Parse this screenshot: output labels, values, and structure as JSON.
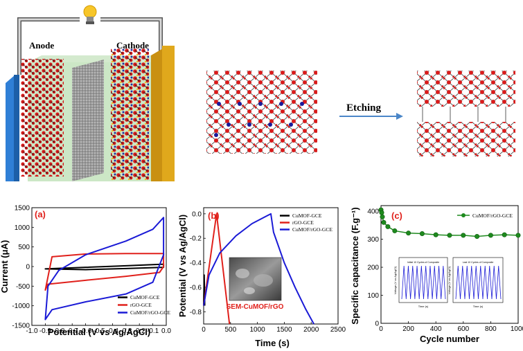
{
  "top": {
    "anode_label": "Anode",
    "cathode_label": "Cathode",
    "etching_label": "Etching"
  },
  "panels": {
    "a": {
      "label": "(a)"
    },
    "b": {
      "label": "(b)",
      "inset_label": "SEM-CuMOF/rGO"
    },
    "c": {
      "label": "(c)",
      "inset_left_title": "Initial 10 Cycles of Composite",
      "inset_right_title": "Last 10 Cycles of Composite",
      "inset_xlabel": "Time (s)",
      "inset_ylabel": "Voltage (V vs Ag/AgCl)"
    }
  },
  "colors": {
    "black": "#000000",
    "red": "#e0201b",
    "darkred": "#7a0a0a",
    "blue": "#1a1ad6",
    "green": "#1e8a1e"
  },
  "chart_data": [
    {
      "type": "line",
      "id": "a",
      "xlabel": "Potential (V vs Ag/AgCl)",
      "ylabel": "Current (μA)",
      "xlim": [
        -1.0,
        0.0
      ],
      "ylim": [
        -1500,
        1500
      ],
      "xticks": [
        "-1.0",
        "-0.9",
        "-0.8",
        "-0.7",
        "-0.6",
        "-0.5",
        "-0.4",
        "-0.3",
        "-0.2",
        "-0.1",
        "0.0"
      ],
      "yticks": [
        "-1500",
        "-1000",
        "-500",
        "0",
        "500",
        "1000",
        "1500"
      ],
      "legend": [
        "CuMOF-GCE",
        "rGO-GCE",
        "CuMOF/rGO-GCE"
      ],
      "series": [
        {
          "name": "CuMOF-GCE",
          "x": [
            -0.9,
            -0.6,
            -0.3,
            -0.02,
            -0.02,
            -0.3,
            -0.6,
            -0.9
          ],
          "y": [
            -60,
            -20,
            20,
            60,
            -20,
            -50,
            -80,
            -60
          ]
        },
        {
          "name": "rGO-GCE",
          "x": [
            -0.9,
            -0.85,
            -0.6,
            -0.3,
            -0.02,
            -0.02,
            -0.05,
            -0.3,
            -0.6,
            -0.88,
            -0.9
          ],
          "y": [
            -600,
            250,
            320,
            330,
            330,
            0,
            -150,
            -250,
            -350,
            -450,
            -600
          ]
        },
        {
          "name": "CuMOF/rGO-GCE",
          "x": [
            -0.9,
            -0.88,
            -0.8,
            -0.6,
            -0.3,
            -0.1,
            -0.02,
            -0.02,
            -0.1,
            -0.3,
            -0.6,
            -0.85,
            -0.9
          ],
          "y": [
            -1350,
            -500,
            -100,
            300,
            650,
            950,
            1250,
            300,
            -400,
            -700,
            -900,
            -1100,
            -1350
          ]
        }
      ]
    },
    {
      "type": "line",
      "id": "b",
      "xlabel": "Time (s)",
      "ylabel": "Potential (V vs Ag/AgCl)",
      "xlim": [
        0,
        2500
      ],
      "ylim": [
        -0.9,
        0.05
      ],
      "xticks": [
        "0",
        "500",
        "1000",
        "1500",
        "2000",
        "2500"
      ],
      "yticks": [
        "-0.8",
        "-0.6",
        "-0.4",
        "-0.2",
        "0.0"
      ],
      "legend": [
        "CuMOF-GCE",
        "rGO-GCE",
        "CuMOF/rGO-GCE"
      ],
      "series": [
        {
          "name": "CuMOF-GCE",
          "x": [
            0,
            10,
            20
          ],
          "y": [
            -0.75,
            -0.5,
            -0.75
          ]
        },
        {
          "name": "rGO-GCE",
          "x": [
            0,
            240,
            480
          ],
          "y": [
            -0.75,
            0.0,
            -0.9
          ]
        },
        {
          "name": "CuMOF/rGO-GCE",
          "x": [
            0,
            100,
            300,
            600,
            900,
            1250,
            1300,
            1500,
            1700,
            1900,
            2050
          ],
          "y": [
            -0.75,
            -0.5,
            -0.32,
            -0.18,
            -0.08,
            0.0,
            -0.15,
            -0.4,
            -0.6,
            -0.78,
            -0.9
          ]
        }
      ]
    },
    {
      "type": "line",
      "id": "c",
      "xlabel": "Cycle number",
      "ylabel": "Specific capacitance (F.g⁻¹)",
      "xlim": [
        0,
        1000
      ],
      "ylim": [
        0,
        420
      ],
      "xticks": [
        "0",
        "200",
        "400",
        "600",
        "800",
        "1000"
      ],
      "yticks": [
        "0",
        "100",
        "200",
        "300",
        "400"
      ],
      "legend": [
        "CuMOF/rGO-GCE"
      ],
      "series": [
        {
          "name": "CuMOF/rGO-GCE",
          "x": [
            0,
            5,
            10,
            20,
            50,
            100,
            200,
            300,
            400,
            500,
            600,
            700,
            800,
            900,
            1000
          ],
          "y": [
            405,
            395,
            380,
            360,
            345,
            330,
            322,
            320,
            316,
            314,
            314,
            310,
            314,
            316,
            314
          ]
        }
      ]
    }
  ]
}
